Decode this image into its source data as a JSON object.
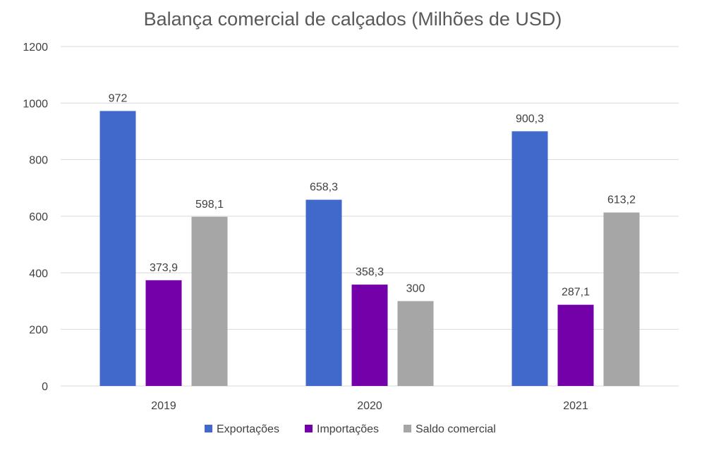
{
  "chart_data": {
    "type": "bar",
    "title": "Balança comercial de calçados (Milhões de USD)",
    "xlabel": "",
    "ylabel": "",
    "ylim": [
      0,
      1200
    ],
    "yticks": [
      "0",
      "200",
      "400",
      "600",
      "800",
      "1000",
      "1200"
    ],
    "ytick_values": [
      0,
      200,
      400,
      600,
      800,
      1000,
      1200
    ],
    "categories": [
      "2019",
      "2020",
      "2021"
    ],
    "series": [
      {
        "name": "Exportações",
        "color": "#4169CB",
        "values": [
          972,
          658.3,
          900.3
        ],
        "labels": [
          "972",
          "658,3",
          "900,3"
        ]
      },
      {
        "name": "Importações",
        "color": "#7300A8",
        "values": [
          373.9,
          358.3,
          287.1
        ],
        "labels": [
          "373,9",
          "358,3",
          "287,1"
        ]
      },
      {
        "name": "Saldo comercial",
        "color": "#A6A6A6",
        "values": [
          598.1,
          300,
          613.2
        ],
        "labels": [
          "598,1",
          "300",
          "613,2"
        ]
      }
    ],
    "grid": true,
    "legend_position": "bottom"
  }
}
